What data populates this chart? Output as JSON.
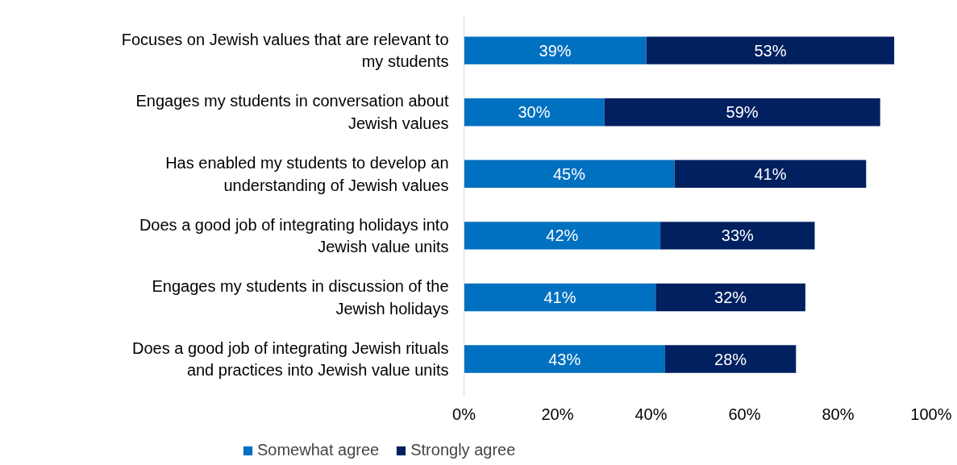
{
  "chart_data": {
    "type": "bar",
    "orientation": "horizontal",
    "stacked": true,
    "categories": [
      "Focuses on Jewish values that are relevant to my students",
      "Engages my students in conversation about Jewish values",
      "Has enabled my students to develop an understanding of Jewish values",
      "Does a good job of integrating holidays into Jewish value units",
      "Engages my students in discussion of the Jewish holidays",
      "Does a good job of integrating Jewish rituals and practices into Jewish value units"
    ],
    "series": [
      {
        "name": "Somewhat agree",
        "color": "#0070c0",
        "values": [
          39,
          30,
          45,
          42,
          41,
          43
        ],
        "value_labels": [
          "39%",
          "30%",
          "45%",
          "42%",
          "41%",
          "43%"
        ]
      },
      {
        "name": "Strongly agree",
        "color": "#002060",
        "values": [
          53,
          59,
          41,
          33,
          32,
          28
        ],
        "value_labels": [
          "53%",
          "59%",
          "41%",
          "33%",
          "32%",
          "28%"
        ]
      }
    ],
    "xlim": [
      0,
      100
    ],
    "xticks": [
      {
        "value": 0,
        "label": "0%"
      },
      {
        "value": 20,
        "label": "20%"
      },
      {
        "value": 40,
        "label": "40%"
      },
      {
        "value": 60,
        "label": "60%"
      },
      {
        "value": 80,
        "label": "80%"
      },
      {
        "value": 100,
        "label": "100%"
      }
    ],
    "grid": false,
    "legend": "bottom"
  }
}
